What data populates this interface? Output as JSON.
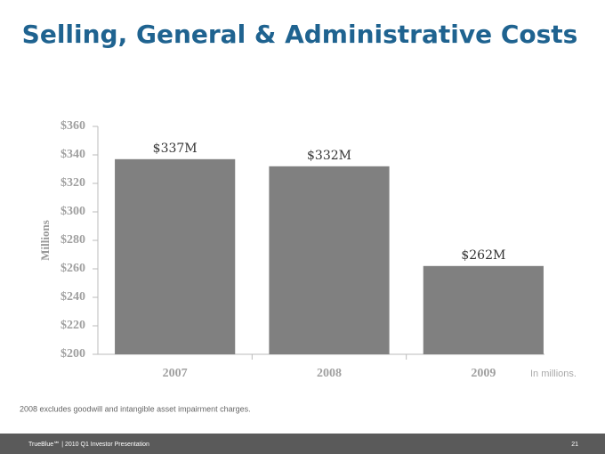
{
  "chart_data": {
    "type": "bar",
    "title": "Selling, General & Administrative Costs",
    "y_label": "Millions",
    "note": "In millions.",
    "footnote": "2008 excludes goodwill and intangible asset impairment charges.",
    "footer": "TrueBlue℠ | 2010 Q1 Investor Presentation",
    "page_number": "21",
    "categories": [
      "2007",
      "2008",
      "2009"
    ],
    "values": [
      337,
      332,
      262
    ],
    "value_labels": [
      "$337M",
      "$332M",
      "$262M"
    ],
    "color": "#808080",
    "ylim": [
      200,
      360
    ],
    "yticks": [
      {
        "value": 200,
        "label": "$200"
      },
      {
        "value": 220,
        "label": "$220"
      },
      {
        "value": 240,
        "label": "$240"
      },
      {
        "value": 260,
        "label": "$260"
      },
      {
        "value": 280,
        "label": "$280"
      },
      {
        "value": 300,
        "label": "$300"
      },
      {
        "value": 320,
        "label": "$320"
      },
      {
        "value": 340,
        "label": "$340"
      },
      {
        "value": 360,
        "label": "$360"
      }
    ]
  }
}
